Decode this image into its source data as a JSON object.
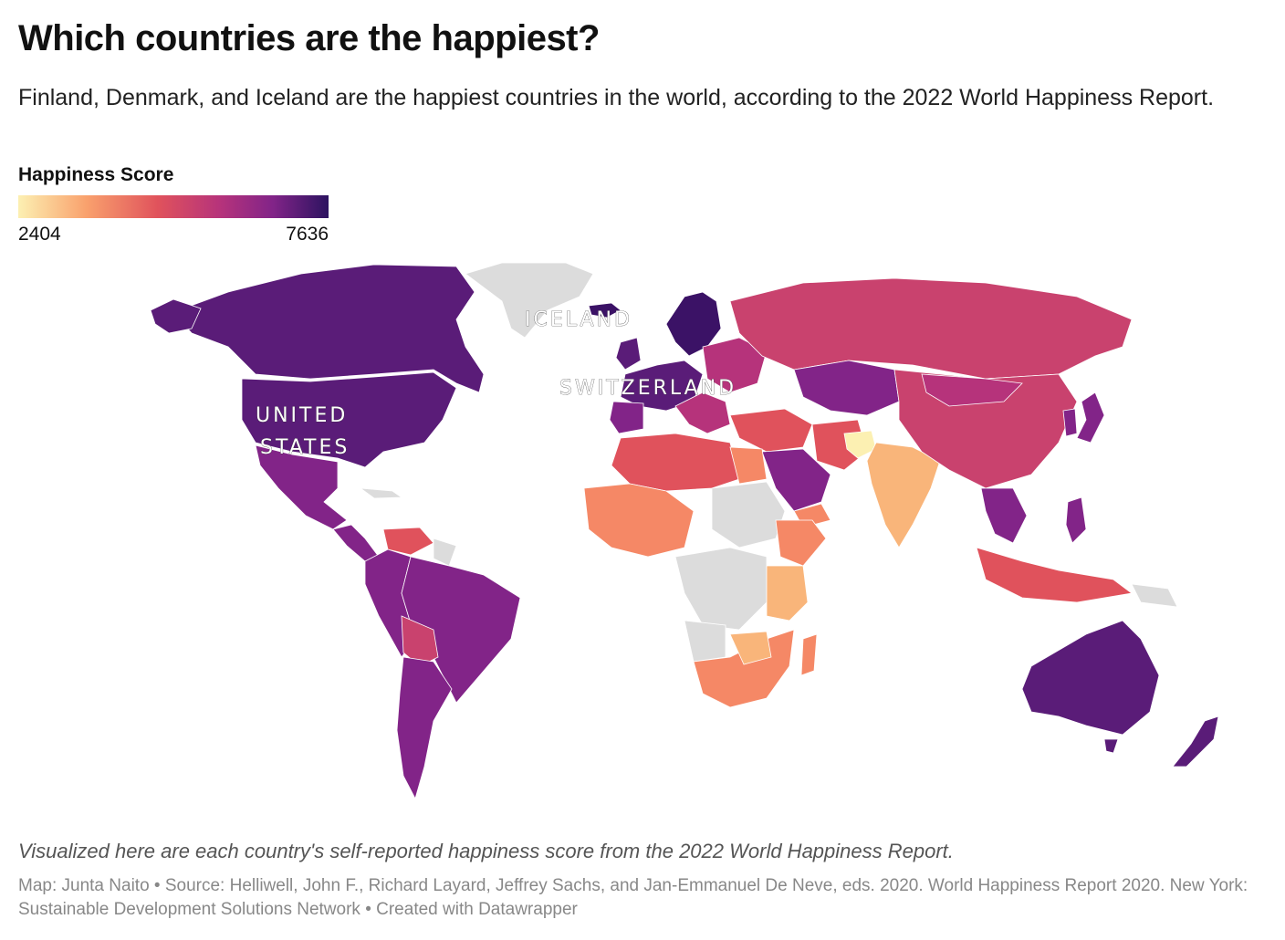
{
  "title": "Which countries are the happiest?",
  "subtitle": "Finland, Denmark, and Iceland are the happiest countries in the world, according to the 2022 World Happiness Report.",
  "legend": {
    "title": "Happiness Score",
    "min_label": "2404",
    "max_label": "7636",
    "colors": [
      "#fcf0b2",
      "#f9a16d",
      "#e0525c",
      "#b6337b",
      "#822488",
      "#2c1360"
    ]
  },
  "labels": {
    "united_states": [
      "UNITED",
      "STATES"
    ],
    "iceland": "ICELAND",
    "switzerland": "SWITZERLAND"
  },
  "colors": {
    "no_data": "#dcdcdc",
    "highest": "#3b1266",
    "very_high": "#5a1c78",
    "high": "#822488",
    "mid_high": "#b6337b",
    "mid": "#c9426e",
    "mid_low": "#e0525c",
    "low": "#f58866",
    "very_low": "#f9b57a",
    "lowest": "#fcf0b2"
  },
  "note": "Visualized here are each country's self-reported happiness score from the 2022 World Happiness Report.",
  "source": "Map: Junta Naito • Source: Helliwell, John F., Richard Layard, Jeffrey Sachs, and Jan-Emmanuel De Neve, eds. 2020. World Happiness Report 2020. New York: Sustainable Development Solutions Network • Created with Datawrapper"
}
